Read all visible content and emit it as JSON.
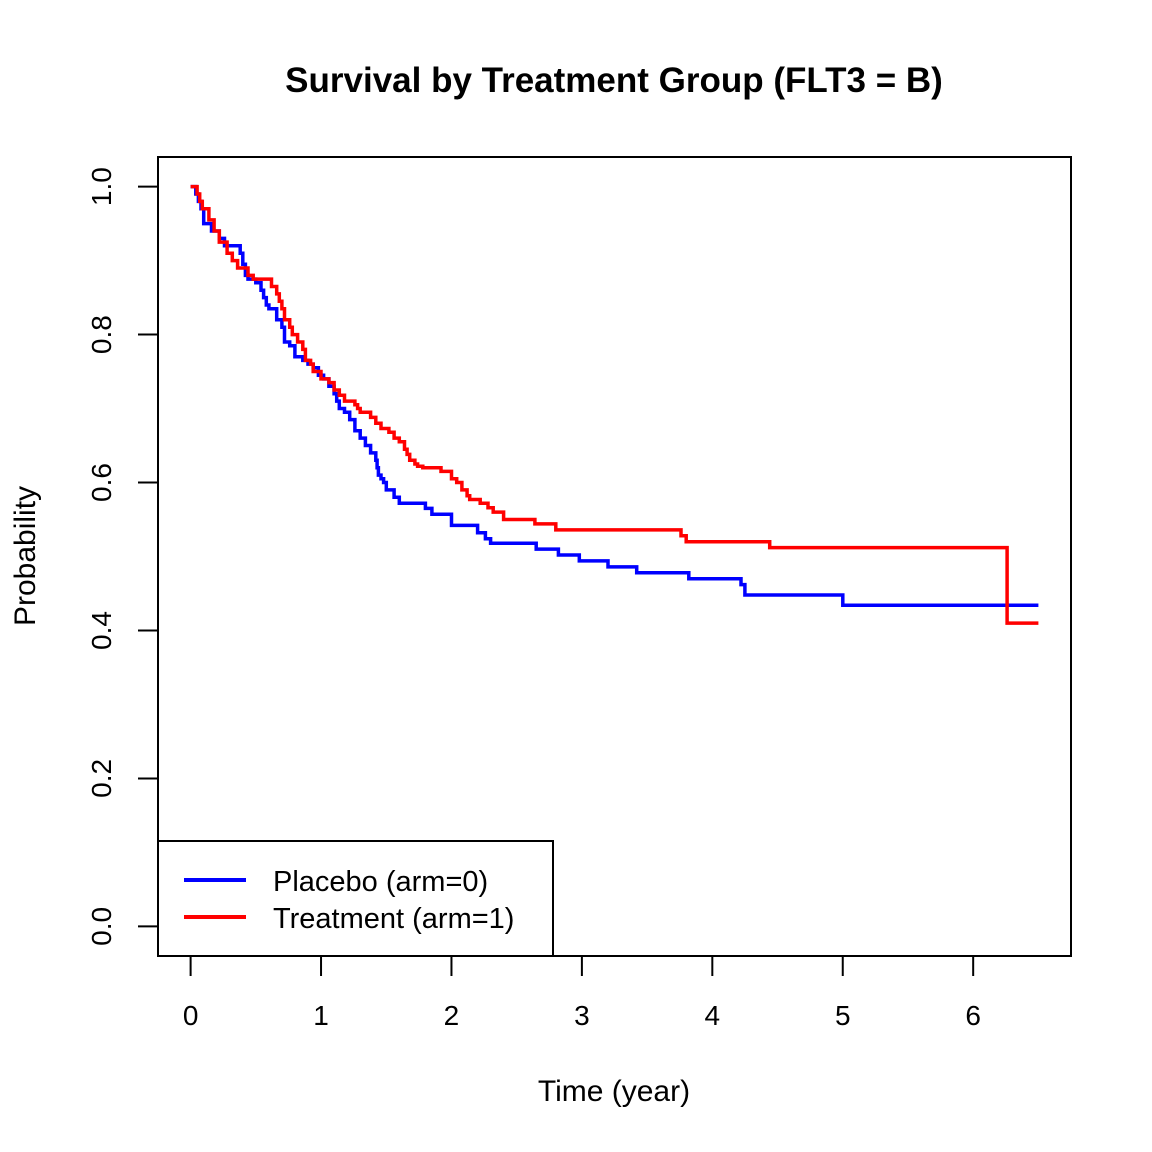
{
  "chart_data": {
    "type": "line",
    "title": "Survival by Treatment Group (FLT3 = B)",
    "xlabel": "Time (year)",
    "ylabel": "Probability",
    "xlim": [
      -0.25,
      6.75
    ],
    "ylim": [
      -0.04,
      1.04
    ],
    "xticks": [
      "0",
      "1",
      "2",
      "3",
      "4",
      "5",
      "6"
    ],
    "yticks": [
      "0.0",
      "0.2",
      "0.4",
      "0.6",
      "0.8",
      "1.0"
    ],
    "grid": false,
    "legend_position": "bottom-left",
    "series": [
      {
        "name": "Placebo (arm=0)",
        "color": "#0000ff",
        "step": true,
        "x": [
          0,
          0.04,
          0.06,
          0.08,
          0.1,
          0.16,
          0.22,
          0.26,
          0.3,
          0.38,
          0.4,
          0.42,
          0.44,
          0.5,
          0.54,
          0.56,
          0.58,
          0.6,
          0.66,
          0.7,
          0.72,
          0.76,
          0.8,
          0.86,
          0.9,
          0.94,
          0.98,
          1.02,
          1.06,
          1.1,
          1.12,
          1.14,
          1.18,
          1.22,
          1.26,
          1.3,
          1.34,
          1.38,
          1.42,
          1.43,
          1.44,
          1.46,
          1.48,
          1.5,
          1.56,
          1.6,
          1.8,
          1.85,
          2.0,
          2.2,
          2.26,
          2.3,
          2.65,
          2.82,
          2.98,
          3.2,
          3.42,
          3.82,
          4.22,
          4.25,
          5.0,
          6.5
        ],
        "y": [
          1.0,
          0.99,
          0.98,
          0.97,
          0.95,
          0.94,
          0.93,
          0.92,
          0.92,
          0.91,
          0.895,
          0.88,
          0.875,
          0.87,
          0.86,
          0.85,
          0.84,
          0.835,
          0.82,
          0.81,
          0.79,
          0.785,
          0.77,
          0.765,
          0.76,
          0.755,
          0.745,
          0.74,
          0.73,
          0.72,
          0.71,
          0.7,
          0.695,
          0.685,
          0.67,
          0.66,
          0.65,
          0.64,
          0.63,
          0.62,
          0.61,
          0.605,
          0.6,
          0.59,
          0.58,
          0.572,
          0.565,
          0.557,
          0.542,
          0.532,
          0.524,
          0.518,
          0.51,
          0.502,
          0.494,
          0.486,
          0.478,
          0.47,
          0.462,
          0.448,
          0.434,
          0.434
        ]
      },
      {
        "name": "Treatment (arm=1)",
        "color": "#ff0000",
        "step": true,
        "x": [
          0,
          0.05,
          0.07,
          0.09,
          0.14,
          0.18,
          0.22,
          0.28,
          0.32,
          0.36,
          0.44,
          0.48,
          0.62,
          0.66,
          0.68,
          0.7,
          0.72,
          0.76,
          0.78,
          0.82,
          0.86,
          0.88,
          0.92,
          0.94,
          1.0,
          1.06,
          1.1,
          1.14,
          1.18,
          1.26,
          1.28,
          1.3,
          1.38,
          1.42,
          1.46,
          1.52,
          1.56,
          1.6,
          1.64,
          1.66,
          1.68,
          1.72,
          1.74,
          1.78,
          1.92,
          2.0,
          2.04,
          2.08,
          2.12,
          2.14,
          2.22,
          2.28,
          2.32,
          2.4,
          2.64,
          2.8,
          3.76,
          3.8,
          4.44,
          6.26,
          6.5
        ],
        "y": [
          1.0,
          0.99,
          0.98,
          0.97,
          0.955,
          0.94,
          0.925,
          0.91,
          0.9,
          0.89,
          0.88,
          0.875,
          0.865,
          0.855,
          0.845,
          0.835,
          0.82,
          0.81,
          0.8,
          0.79,
          0.78,
          0.765,
          0.76,
          0.75,
          0.74,
          0.735,
          0.725,
          0.718,
          0.71,
          0.705,
          0.7,
          0.695,
          0.688,
          0.68,
          0.673,
          0.668,
          0.66,
          0.655,
          0.645,
          0.638,
          0.63,
          0.625,
          0.622,
          0.62,
          0.615,
          0.605,
          0.6,
          0.59,
          0.582,
          0.577,
          0.572,
          0.566,
          0.56,
          0.55,
          0.544,
          0.536,
          0.528,
          0.52,
          0.512,
          0.41,
          0.41
        ]
      }
    ]
  }
}
